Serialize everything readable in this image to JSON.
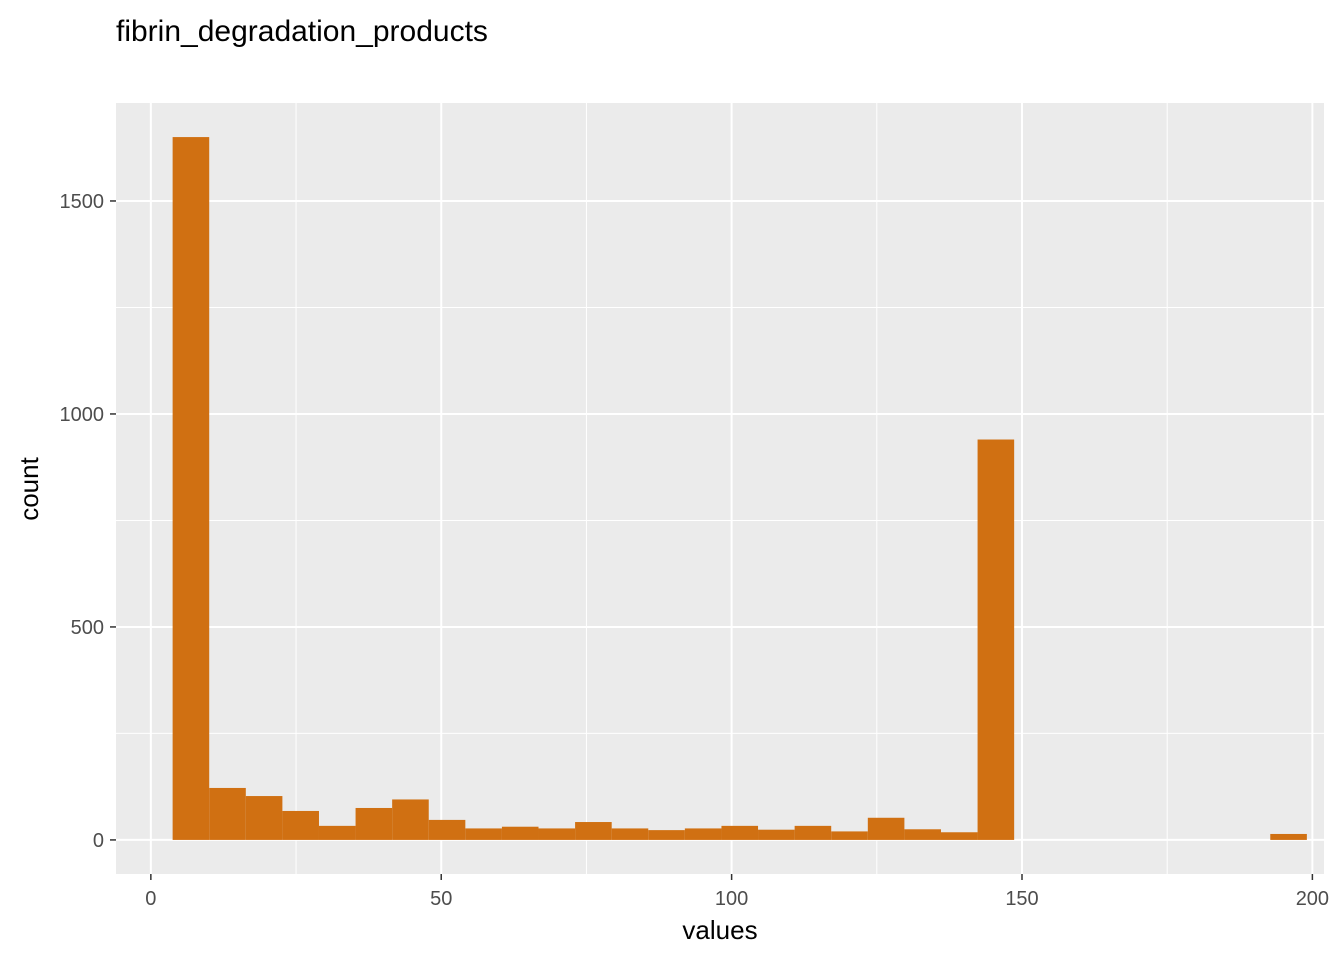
{
  "chart_data": {
    "type": "bar",
    "subtype": "histogram",
    "title": "fibrin_degradation_products",
    "xlabel": "values",
    "ylabel": "count",
    "xlim": [
      -6,
      202
    ],
    "ylim": [
      -80,
      1730
    ],
    "x_ticks": [
      0,
      50,
      100,
      150,
      200
    ],
    "y_ticks": [
      0,
      500,
      1000,
      1500
    ],
    "bin_width": 6.3,
    "bin_start": 3.75,
    "values": [
      1650,
      122,
      103,
      68,
      33,
      75,
      95,
      47,
      27,
      31,
      27,
      42,
      27,
      23,
      27,
      33,
      24,
      33,
      20,
      52,
      25,
      18,
      940,
      0,
      0,
      0,
      0,
      0,
      0,
      0,
      14
    ],
    "bar_color": "#D07012",
    "panel_color": "#EBEBEB",
    "grid": true,
    "legend": "none"
  }
}
